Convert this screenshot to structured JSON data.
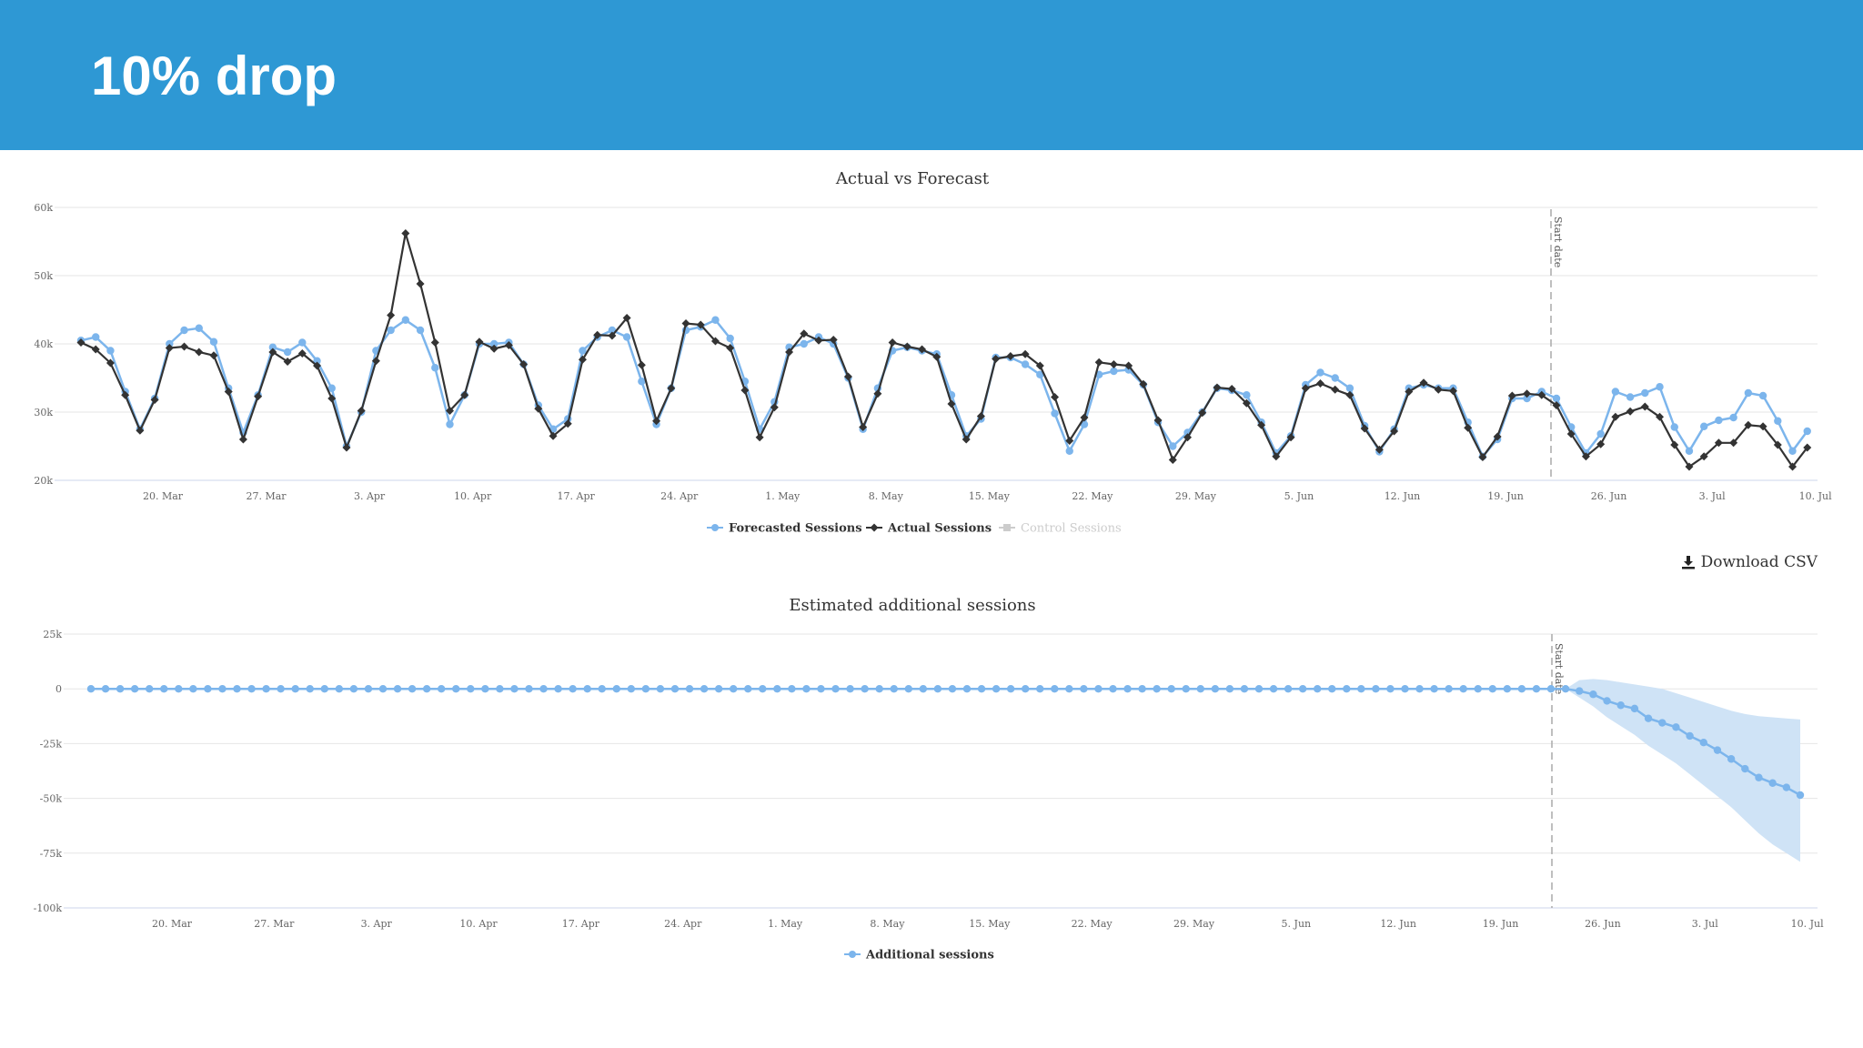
{
  "page": {
    "title": "10% drop"
  },
  "download": {
    "label": "Download CSV",
    "icon": "download-icon"
  },
  "colors": {
    "header": "#2e98d4",
    "forecast": "#7cb5ec",
    "actual": "#333333",
    "band": "#cfe3f6",
    "control": "#cccccc"
  },
  "chart_data": [
    {
      "type": "line",
      "title": "Actual vs Forecast",
      "y_ticks": [
        "60k",
        "50k",
        "40k",
        "30k",
        "20k"
      ],
      "ylim": [
        20000,
        60000
      ],
      "x_ticks": [
        "20. Mar",
        "27. Mar",
        "3. Apr",
        "10. Apr",
        "17. Apr",
        "24. Apr",
        "1. May",
        "8. May",
        "15. May",
        "22. May",
        "29. May",
        "5. Jun",
        "12. Jun",
        "19. Jun",
        "26. Jun",
        "3. Jul",
        "10. Jul"
      ],
      "x_start": "2017-03-14",
      "marker_label": "Start date",
      "marker_date": "2017-06-22",
      "legend": [
        {
          "label": "Forecasted Sessions",
          "color": "#7cb5ec",
          "enabled": true
        },
        {
          "label": "Actual Sessions",
          "color": "#333333",
          "enabled": true
        },
        {
          "label": "Control Sessions",
          "color": "#cccccc",
          "enabled": false
        }
      ],
      "series": [
        {
          "name": "Forecasted Sessions",
          "values": [
            40500,
            41000,
            39000,
            33000,
            27500,
            32000,
            40000,
            42000,
            42300,
            40300,
            33500,
            27000,
            32500,
            39500,
            38800,
            40200,
            37500,
            33500,
            25000,
            30000,
            39000,
            42000,
            43500,
            42000,
            36500,
            28200,
            32500,
            40000,
            40000,
            40200,
            37000,
            31000,
            27500,
            29000,
            39000,
            41000,
            42000,
            41000,
            34500,
            28200,
            33500,
            42000,
            42500,
            43500,
            40800,
            34500,
            27500,
            31500,
            39500,
            40000,
            41000,
            40000,
            35000,
            27500,
            33500,
            39000,
            39500,
            39000,
            38500,
            32500,
            26500,
            29000,
            38000,
            38000,
            37000,
            35500,
            29800,
            24300,
            28200,
            35500,
            36000,
            36200,
            34000,
            28500,
            25000,
            27000,
            30000,
            33500,
            33200,
            32500,
            28500,
            24000,
            26500,
            34000,
            35800,
            35000,
            33500,
            28000,
            24200,
            27500,
            33500,
            34000,
            33500,
            33500,
            28500,
            23500,
            26000,
            32000,
            32000,
            33000,
            32000,
            27800,
            24000,
            26800,
            33000,
            32200,
            32800,
            33700,
            27800,
            24300,
            27900,
            28800,
            29200,
            32800,
            32400,
            28700,
            24300,
            27200
          ]
        },
        {
          "name": "Actual Sessions",
          "values": [
            40200,
            39200,
            37200,
            32500,
            27300,
            31800,
            39400,
            39600,
            38800,
            38300,
            33000,
            26000,
            32300,
            38800,
            37400,
            38600,
            36800,
            32000,
            24800,
            30200,
            37500,
            44200,
            56200,
            48800,
            40200,
            30200,
            32500,
            40300,
            39300,
            39800,
            37000,
            30500,
            26500,
            28300,
            37700,
            41300,
            41200,
            43800,
            36900,
            28700,
            33500,
            43000,
            42800,
            40400,
            39400,
            33200,
            26300,
            30700,
            38800,
            41500,
            40500,
            40600,
            35200,
            27800,
            32700,
            40200,
            39600,
            39200,
            38100,
            31200,
            26000,
            29400,
            37800,
            38200,
            38500,
            36800,
            32200,
            25800,
            29200,
            37300,
            37000,
            36800,
            34100,
            28800,
            23000,
            26300,
            29900,
            33600,
            33400,
            31300,
            28100,
            23500,
            26300,
            33500,
            34200,
            33300,
            32500,
            27600,
            24500,
            27200,
            33000,
            34300,
            33300,
            33100,
            27700,
            23400,
            26400,
            32400,
            32700,
            32500,
            31000,
            26800,
            23500,
            25300,
            29300,
            30100,
            30800,
            29300,
            25200,
            22000,
            23500,
            25500,
            25500,
            28100,
            27900,
            25200,
            22000,
            24800
          ]
        }
      ]
    },
    {
      "type": "area",
      "title": "Estimated additional sessions",
      "y_ticks": [
        "25k",
        "0",
        "-25k",
        "-50k",
        "-75k",
        "-100k"
      ],
      "ylim": [
        -100000,
        25000
      ],
      "x_ticks": [
        "20. Mar",
        "27. Mar",
        "3. Apr",
        "10. Apr",
        "17. Apr",
        "24. Apr",
        "1. May",
        "8. May",
        "15. May",
        "22. May",
        "29. May",
        "5. Jun",
        "12. Jun",
        "19. Jun",
        "26. Jun",
        "3. Jul",
        "10. Jul"
      ],
      "x_start": "2017-03-15",
      "marker_label": "Start date",
      "marker_date": "2017-06-22",
      "legend": [
        {
          "label": "Additional sessions",
          "color": "#7cb5ec",
          "enabled": true
        }
      ],
      "series": [
        {
          "name": "Additional sessions",
          "values_before_start": 0,
          "points_before_start": 101,
          "values": [
            0,
            -1000,
            -2500,
            -5500,
            -7500,
            -9000,
            -13500,
            -15500,
            -17500,
            -21500,
            -24500,
            -28000,
            -32000,
            -36500,
            -40500,
            -43000,
            -45000,
            -48500
          ],
          "band_upper": [
            0,
            4000,
            4500,
            4000,
            3000,
            2000,
            1000,
            0,
            -2000,
            -4000,
            -6000,
            -8000,
            -10000,
            -11500,
            -12500,
            -13000,
            -13500,
            -14000
          ],
          "band_lower": [
            0,
            -4000,
            -8000,
            -13000,
            -17000,
            -21000,
            -26000,
            -30000,
            -34000,
            -39000,
            -44000,
            -49000,
            -54000,
            -60000,
            -66000,
            -71000,
            -75000,
            -79000
          ]
        }
      ]
    }
  ]
}
